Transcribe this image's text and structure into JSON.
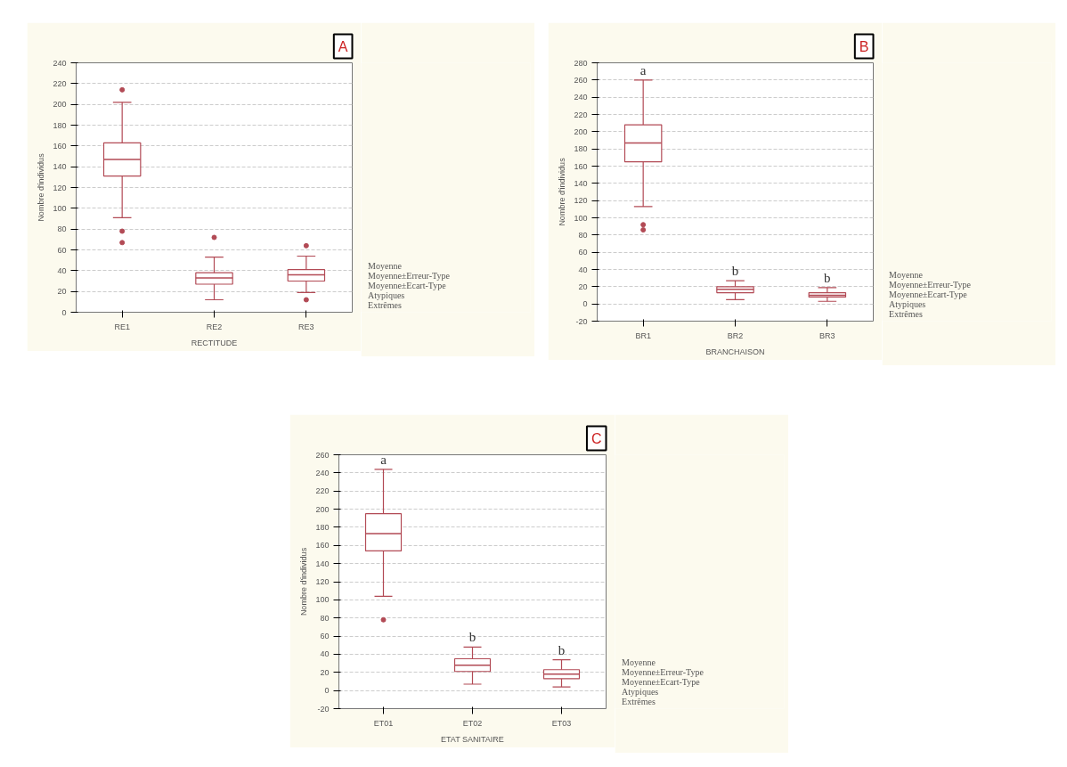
{
  "chart_data": [
    {
      "type": "box",
      "title": "A",
      "xlabel": "RECTITUDE",
      "ylabel": "Nombre d'individus",
      "categories": [
        "RE1",
        "RE2",
        "RE3"
      ],
      "ylim": [
        0,
        240
      ],
      "yticks": [
        0,
        20,
        40,
        60,
        80,
        100,
        120,
        140,
        160,
        180,
        200,
        220,
        240
      ],
      "grid": "y",
      "series": [
        {
          "color": "#b24a55",
          "boxes": [
            {
              "low": 91,
              "q1": 131,
              "median": 147,
              "q3": 163,
              "high": 202,
              "outliers": [
                214,
                78,
                67
              ]
            },
            {
              "low": 12,
              "q1": 27,
              "median": 33,
              "q3": 38,
              "high": 53,
              "outliers": [
                72
              ]
            },
            {
              "low": 19,
              "q1": 30,
              "median": 36,
              "q3": 41,
              "high": 54,
              "outliers": [
                64,
                12
              ]
            }
          ]
        }
      ],
      "annotations": [
        "Moyenne",
        "Moyenne±Erreur-Type",
        "Moyenne±Ecart-Type",
        "Atypiques",
        "Extrêmes"
      ]
    },
    {
      "type": "box",
      "title": "B",
      "xlabel": "BRANCHAISON",
      "ylabel": "Nombre d'individus",
      "categories": [
        "BR1",
        "BR2",
        "BR3"
      ],
      "ylim": [
        -20,
        280
      ],
      "yticks": [
        -20,
        0,
        20,
        40,
        60,
        80,
        100,
        120,
        140,
        160,
        180,
        200,
        220,
        240,
        260,
        280
      ],
      "grid": "y",
      "series": [
        {
          "color": "#b24a55",
          "boxes": [
            {
              "low": 113,
              "q1": 165,
              "median": 187,
              "q3": 208,
              "high": 260,
              "outliers": [
                92,
                86
              ]
            },
            {
              "low": 5,
              "q1": 13,
              "median": 17,
              "q3": 20,
              "high": 27
            },
            {
              "low": 3,
              "q1": 8,
              "median": 10,
              "q3": 13,
              "high": 19
            }
          ]
        }
      ],
      "annotations": [
        "Moyenne",
        "Moyenne±Erreur-Type",
        "Moyenne±Ecart-Type",
        "Atypiques",
        "Extrêmes",
        "a",
        "b",
        "b"
      ]
    },
    {
      "type": "box",
      "title": "C",
      "xlabel": "ETAT SANITAIRE",
      "ylabel": "Nombre d'individus",
      "categories": [
        "ET01",
        "ET02",
        "ET03"
      ],
      "ylim": [
        -20,
        260
      ],
      "yticks": [
        -20,
        0,
        20,
        40,
        60,
        80,
        100,
        120,
        140,
        160,
        180,
        200,
        220,
        240,
        260
      ],
      "grid": "y",
      "series": [
        {
          "color": "#b24a55",
          "boxes": [
            {
              "low": 104,
              "q1": 154,
              "median": 173,
              "q3": 195,
              "high": 244,
              "outliers": [
                78
              ]
            },
            {
              "low": 7,
              "q1": 21,
              "median": 28,
              "q3": 35,
              "high": 48
            },
            {
              "low": 4,
              "q1": 13,
              "median": 18,
              "q3": 23,
              "high": 34
            }
          ]
        }
      ],
      "annotations": [
        "Moyenne",
        "Moyenne±Erreur-Type",
        "Moyenne±Ecart-Type",
        "Atypiques",
        "Extrêmes",
        "a",
        "b",
        "b"
      ]
    }
  ]
}
